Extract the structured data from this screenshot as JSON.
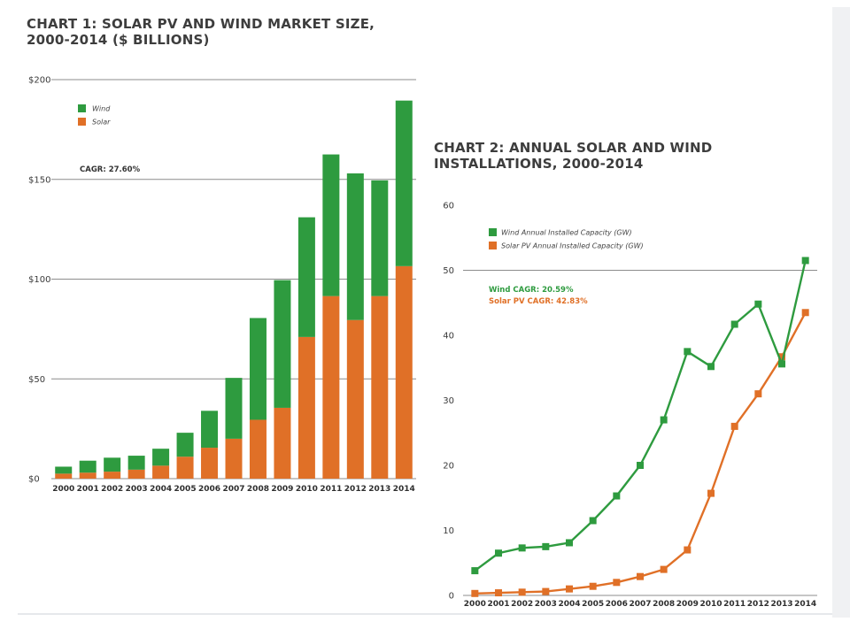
{
  "chart_data": [
    {
      "type": "bar",
      "stacked": true,
      "title": "CHART 1: SOLAR PV AND WIND MARKET SIZE, 2000-2014 ($ BILLIONS)",
      "categories": [
        "2000",
        "2001",
        "2002",
        "2003",
        "2004",
        "2005",
        "2006",
        "2007",
        "2008",
        "2009",
        "2010",
        "2011",
        "2012",
        "2013",
        "2014"
      ],
      "series": [
        {
          "name": "Solar",
          "color": "#e07027",
          "values": [
            2.5,
            3,
            3.5,
            4.5,
            6.5,
            11,
            15.5,
            20,
            29.5,
            35.5,
            71,
            91.5,
            79.5,
            91.5,
            106.5
          ]
        },
        {
          "name": "Wind",
          "color": "#2e9b3f",
          "values": [
            3.5,
            6,
            7,
            7,
            8.5,
            12,
            18.5,
            30.5,
            51,
            64,
            60,
            71,
            73.5,
            58,
            83
          ]
        }
      ],
      "ylim": [
        0,
        200
      ],
      "yticks": [
        0,
        50,
        100,
        150,
        200
      ],
      "ytick_labels": [
        "$0",
        "$50",
        "$100",
        "$150",
        "$200"
      ],
      "grid": true,
      "legend": "top-left",
      "annotations": [
        {
          "text": "CAGR: 27.60%"
        }
      ]
    },
    {
      "type": "line",
      "title": "CHART 2: ANNUAL SOLAR AND WIND INSTALLATIONS, 2000-2014",
      "x": [
        "2000",
        "2001",
        "2002",
        "2003",
        "2004",
        "2005",
        "2006",
        "2007",
        "2008",
        "2009",
        "2010",
        "2011",
        "2012",
        "2013",
        "2014"
      ],
      "series": [
        {
          "name": "Wind Annual Installed Capacity (GW)",
          "color": "#2e9b3f",
          "values": [
            3.8,
            6.5,
            7.3,
            7.5,
            8.1,
            11.5,
            15.3,
            20.0,
            27.0,
            37.5,
            35.2,
            41.7,
            44.8,
            35.6,
            51.5
          ]
        },
        {
          "name": "Solar PV Annual Installed Capacity (GW)",
          "color": "#e07027",
          "values": [
            0.3,
            0.4,
            0.5,
            0.6,
            1.0,
            1.4,
            2.0,
            2.9,
            4.0,
            7.0,
            15.7,
            26.0,
            31.0,
            36.7,
            43.5
          ]
        }
      ],
      "ylim": [
        0,
        60
      ],
      "yticks": [
        0,
        10,
        20,
        30,
        40,
        50,
        60
      ],
      "ytick_labels": [
        "0",
        "10",
        "20",
        "30",
        "40",
        "50",
        "60"
      ],
      "grid": false,
      "legend": "top-left",
      "annotations": [
        {
          "text": "Wind CAGR: 20.59%",
          "color": "#2e9b3f"
        },
        {
          "text": "Solar PV CAGR: 42.83%",
          "color": "#e07027"
        }
      ]
    }
  ]
}
